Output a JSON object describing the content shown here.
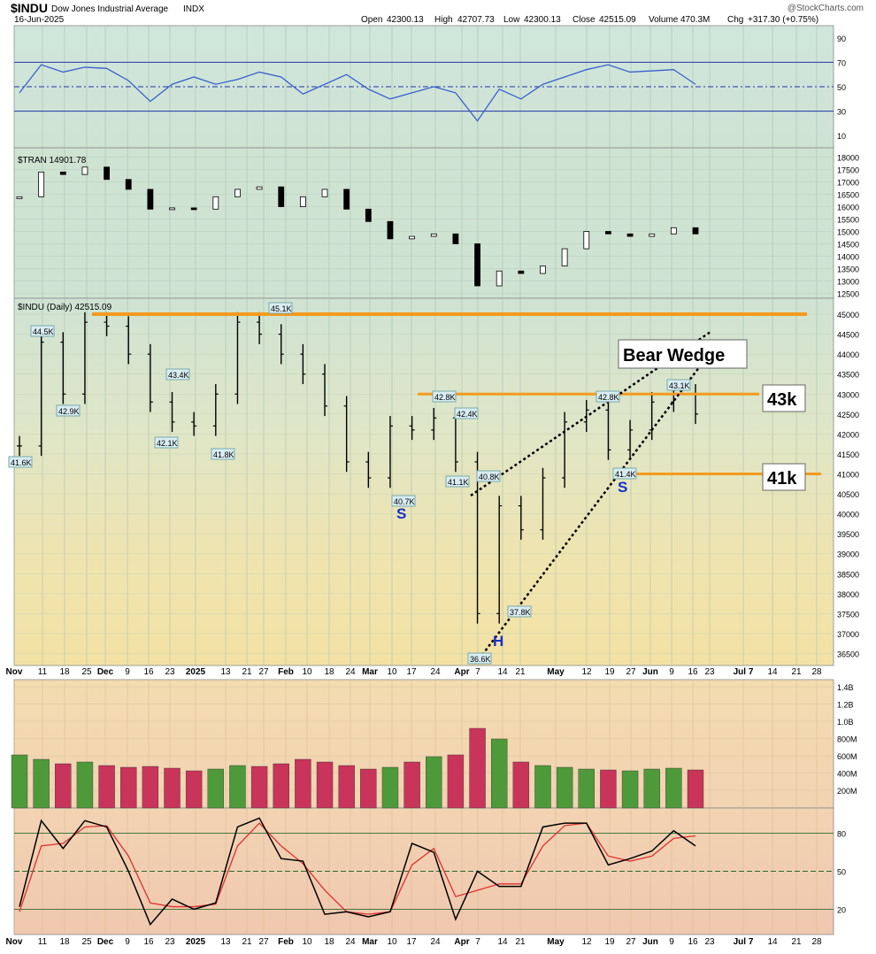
{
  "header": {
    "symbol": "$INDU",
    "name": "Dow Jones Industrial Average",
    "exchange": "INDX",
    "date": "16-Jun-2025",
    "watermark": "@StockCharts.com",
    "ohlc_labels": [
      "Open",
      "High",
      "Low",
      "Close",
      "Volume",
      "Chg"
    ],
    "ohlc_values": [
      "42300.13",
      "42707.73",
      "42300.13",
      "42515.09",
      "470.3M",
      "+317.30 (+0.75%)"
    ]
  },
  "panel_labels": {
    "tran": "$TRAN 14901.78",
    "indu": "$INDU (Daily) 42515.09"
  },
  "annotations": {
    "bear_wedge": "Bear Wedge",
    "level_43k": "43k",
    "level_41k": "41k",
    "left_shoulder": "S",
    "head": "H",
    "right_shoulder": "S"
  },
  "price_labels": [
    "44.5K",
    "42.9K",
    "41.6K",
    "43.4K",
    "42.1K",
    "41.8K",
    "45.1K",
    "40.7K",
    "42.8K",
    "42.4K",
    "41.1K",
    "40.8K",
    "36.6K",
    "37.8K",
    "42.8K",
    "41.4K",
    "43.1K"
  ],
  "x_axis_labels": [
    "Nov",
    "11",
    "18",
    "25",
    "Dec",
    "9",
    "16",
    "23",
    "2025",
    "13",
    "21",
    "27",
    "Feb",
    "10",
    "18",
    "24",
    "Mar",
    "10",
    "17",
    "24",
    "Apr",
    "7",
    "14",
    "21",
    "May",
    "12",
    "19",
    "27",
    "Jun",
    "9",
    "16",
    "23",
    "Jul 7",
    "14",
    "21",
    "28"
  ],
  "colors": {
    "up": "#4e9a3a",
    "down": "#c8345a",
    "orange": "#f39a1e",
    "rsi_line": "#3a5fd0",
    "stoch_k": "#000000",
    "stoch_d": "#e03030",
    "annotation_blue": "#1530c8"
  },
  "chart_data": [
    {
      "type": "line",
      "name": "RSI",
      "y_ticks": [
        90,
        70,
        50,
        30,
        10
      ],
      "ylim": [
        0,
        100
      ],
      "reference_levels": [
        70,
        50,
        30
      ],
      "x_week_index": [
        0,
        1,
        2,
        3,
        4,
        5,
        6,
        7,
        8,
        9,
        10,
        11,
        12,
        13,
        14,
        15,
        16,
        17,
        18,
        19,
        20,
        21,
        22,
        23,
        24,
        25,
        26,
        27,
        28,
        29,
        30,
        31
      ],
      "values": [
        45,
        68,
        62,
        66,
        65,
        55,
        38,
        52,
        58,
        52,
        56,
        62,
        58,
        44,
        52,
        60,
        48,
        40,
        45,
        50,
        45,
        22,
        48,
        40,
        52,
        58,
        64,
        68,
        62,
        63,
        64,
        52
      ]
    },
    {
      "type": "line",
      "name": "$TRAN",
      "y_ticks": [
        18000,
        17500,
        17000,
        16500,
        16000,
        15500,
        15000,
        14500,
        14000,
        13500,
        13000,
        12500
      ],
      "ylim": [
        12300,
        18200
      ],
      "x_week_index": [
        0,
        1,
        2,
        3,
        4,
        5,
        6,
        7,
        8,
        9,
        10,
        11,
        12,
        13,
        14,
        15,
        16,
        17,
        18,
        19,
        20,
        21,
        22,
        23,
        24,
        25,
        26,
        27,
        28,
        29,
        30,
        31
      ],
      "values": [
        16400,
        17400,
        17300,
        17600,
        17100,
        16700,
        15900,
        15950,
        15900,
        16400,
        16700,
        16800,
        16000,
        16400,
        16700,
        15900,
        15400,
        14700,
        14800,
        14900,
        14500,
        12800,
        13400,
        13300,
        13600,
        14300,
        15000,
        14900,
        14800,
        14900,
        15150,
        14900
      ]
    },
    {
      "type": "line",
      "name": "$INDU",
      "y_ticks": [
        45000,
        44500,
        44000,
        43500,
        43000,
        42500,
        42000,
        41500,
        41000,
        40500,
        40000,
        39500,
        39000,
        38500,
        38000,
        37500,
        37000,
        36500
      ],
      "ylim": [
        36200,
        45400
      ],
      "x_week_index": [
        0,
        1,
        2,
        3,
        4,
        5,
        6,
        7,
        8,
        9,
        10,
        11,
        12,
        13,
        14,
        15,
        16,
        17,
        18,
        19,
        20,
        21,
        22,
        23,
        24,
        25,
        26,
        27,
        28,
        29,
        30,
        31
      ],
      "values": [
        41700,
        44300,
        43000,
        44800,
        44700,
        44000,
        42800,
        42300,
        42200,
        43000,
        44800,
        44500,
        44000,
        43500,
        42700,
        41300,
        40900,
        42200,
        42100,
        42400,
        41300,
        37500,
        40200,
        39600,
        40900,
        42300,
        42600,
        41600,
        42100,
        42800,
        43000,
        42500
      ],
      "resistance": [
        45000,
        43000
      ],
      "support": [
        41000
      ]
    },
    {
      "type": "bar",
      "name": "Volume",
      "y_ticks": [
        "1.4B",
        "1.2B",
        "1.0B",
        "800M",
        "600M",
        "400M",
        "200M"
      ],
      "ylim": [
        0,
        1450000000
      ]
    },
    {
      "type": "line",
      "name": "Stochastic",
      "y_ticks": [
        80,
        50,
        20
      ],
      "ylim": [
        0,
        100
      ],
      "reference_levels": [
        80,
        50,
        20
      ],
      "x_week_index": [
        0,
        1,
        2,
        3,
        4,
        5,
        6,
        7,
        8,
        9,
        10,
        11,
        12,
        13,
        14,
        15,
        16,
        17,
        18,
        19,
        20,
        21,
        22,
        23,
        24,
        25,
        26,
        27,
        28,
        29,
        30,
        31
      ],
      "k_values": [
        22,
        90,
        68,
        90,
        85,
        50,
        8,
        28,
        20,
        25,
        85,
        92,
        60,
        58,
        16,
        18,
        14,
        18,
        72,
        65,
        12,
        50,
        38,
        38,
        85,
        88,
        88,
        55,
        60,
        66,
        82,
        70
      ],
      "d_values": [
        18,
        70,
        72,
        85,
        86,
        62,
        25,
        22,
        22,
        24,
        70,
        88,
        70,
        56,
        35,
        18,
        16,
        18,
        55,
        68,
        30,
        35,
        40,
        40,
        70,
        86,
        88,
        62,
        58,
        62,
        76,
        78
      ]
    }
  ]
}
